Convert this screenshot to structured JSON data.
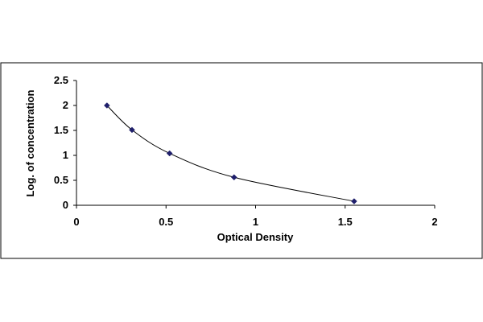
{
  "chart_data": {
    "type": "scatter",
    "title": "",
    "xlabel": "Optical Density",
    "ylabel": "Log. of concentration",
    "xlim": [
      0,
      2
    ],
    "ylim": [
      0,
      2.5
    ],
    "x_ticks": [
      "0",
      "0.5",
      "1",
      "1.5",
      "2"
    ],
    "y_ticks": [
      "0",
      "0.5",
      "1",
      "1.5",
      "2",
      "2.5"
    ],
    "grid": false,
    "legend": "none",
    "trendline": "smooth curve through points",
    "series": [
      {
        "x": [
          0.17,
          0.31,
          0.52,
          0.88,
          1.55
        ],
        "y": [
          2.0,
          1.51,
          1.04,
          0.56,
          0.08
        ]
      }
    ],
    "colors": {
      "marker": "#1f1f6b",
      "line": "#000000",
      "frame": "#000000"
    }
  }
}
